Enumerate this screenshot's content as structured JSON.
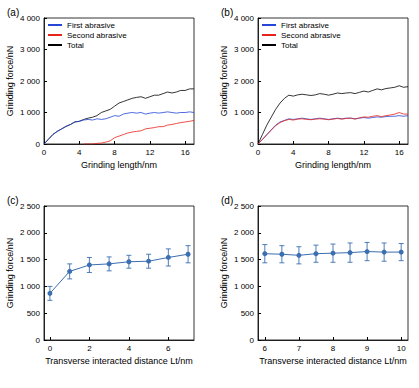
{
  "chart_data": [
    {
      "type": "line",
      "title": "(a)",
      "x_label": "Grinding length/nm",
      "y_label": "Grinding force/nN",
      "legend": "upper left",
      "xlim": [
        0,
        17
      ],
      "xticks": [
        0,
        4,
        8,
        12,
        16
      ],
      "ylim": [
        0,
        4000
      ],
      "yticks": [
        0,
        {
          "value": 1000,
          "label": "1 000"
        },
        {
          "value": 2000,
          "label": "2 000"
        },
        {
          "value": 3000,
          "label": "3 000"
        },
        {
          "value": 4000,
          "label": "4 000"
        }
      ],
      "x": [
        0,
        0.5,
        1,
        1.5,
        2,
        2.5,
        3,
        3.5,
        4,
        4.5,
        5,
        5.5,
        6,
        6.5,
        7,
        7.5,
        8,
        8.5,
        9,
        9.5,
        10,
        10.5,
        11,
        11.5,
        12,
        12.5,
        13,
        13.5,
        14,
        14.5,
        15,
        15.5,
        16,
        16.5,
        17
      ],
      "series": [
        {
          "name": "First abrasive",
          "color": "#2546d6",
          "values": [
            0,
            150,
            300,
            400,
            480,
            560,
            620,
            700,
            720,
            760,
            780,
            760,
            800,
            780,
            800,
            850,
            900,
            880,
            950,
            980,
            1000,
            980,
            1000,
            950,
            980,
            1000,
            980,
            1000,
            1020,
            1000,
            980,
            1000,
            1000,
            1020,
            1000
          ]
        },
        {
          "name": "Second abrasive",
          "color": "#e8231b",
          "values": [
            null,
            null,
            null,
            null,
            null,
            null,
            null,
            null,
            null,
            0,
            0,
            0,
            20,
            30,
            60,
            100,
            200,
            250,
            300,
            350,
            380,
            400,
            420,
            480,
            500,
            520,
            550,
            550,
            600,
            620,
            650,
            680,
            700,
            720,
            750
          ]
        },
        {
          "name": "Total",
          "color": "#000000",
          "values": [
            0,
            150,
            300,
            400,
            480,
            560,
            620,
            700,
            720,
            780,
            820,
            850,
            900,
            1000,
            1050,
            1100,
            1200,
            1300,
            1350,
            1400,
            1450,
            1480,
            1500,
            1450,
            1500,
            1550,
            1550,
            1600,
            1650,
            1620,
            1650,
            1700,
            1700,
            1750,
            1750
          ]
        }
      ]
    },
    {
      "type": "line",
      "title": "(b)",
      "x_label": "Grinding length/nm",
      "y_label": "Grinding force/nN",
      "legend": "upper left",
      "xlim": [
        0,
        17
      ],
      "xticks": [
        0,
        4,
        8,
        12,
        16
      ],
      "ylim": [
        0,
        4000
      ],
      "yticks": [
        0,
        {
          "value": 1000,
          "label": "1 000"
        },
        {
          "value": 2000,
          "label": "2 000"
        },
        {
          "value": 3000,
          "label": "3 000"
        },
        {
          "value": 4000,
          "label": "4 000"
        }
      ],
      "x": [
        0,
        0.5,
        1,
        1.5,
        2,
        2.5,
        3,
        3.5,
        4,
        4.5,
        5,
        5.5,
        6,
        6.5,
        7,
        7.5,
        8,
        8.5,
        9,
        9.5,
        10,
        10.5,
        11,
        11.5,
        12,
        12.5,
        13,
        13.5,
        14,
        14.5,
        15,
        15.5,
        16,
        16.5,
        17
      ],
      "series": [
        {
          "name": "First abrasive",
          "color": "#2546d6",
          "values": [
            0,
            150,
            300,
            450,
            600,
            700,
            750,
            800,
            780,
            800,
            820,
            800,
            780,
            800,
            820,
            800,
            780,
            800,
            820,
            800,
            820,
            820,
            800,
            820,
            840,
            820,
            840,
            860,
            850,
            870,
            880,
            880,
            900,
            880,
            900
          ]
        },
        {
          "name": "Second abrasive",
          "color": "#e8231b",
          "values": [
            0,
            140,
            290,
            440,
            580,
            680,
            740,
            780,
            760,
            790,
            800,
            780,
            770,
            790,
            800,
            790,
            770,
            790,
            810,
            790,
            810,
            820,
            790,
            830,
            860,
            850,
            880,
            900,
            870,
            900,
            920,
            950,
            1000,
            950,
            950
          ]
        },
        {
          "name": "Total",
          "color": "#000000",
          "values": [
            0,
            300,
            600,
            850,
            1100,
            1300,
            1450,
            1550,
            1520,
            1560,
            1580,
            1560,
            1540,
            1560,
            1600,
            1580,
            1550,
            1580,
            1620,
            1600,
            1620,
            1630,
            1600,
            1640,
            1680,
            1650,
            1700,
            1750,
            1720,
            1760,
            1780,
            1800,
            1850,
            1800,
            1820
          ]
        }
      ]
    },
    {
      "type": "line",
      "title": "(c)",
      "x_label": "Transverse interacted distance Lt/nm",
      "y_label": "Grinding force/nN",
      "xlim": [
        -0.3,
        7.3
      ],
      "xticks": [
        0,
        2,
        4,
        6
      ],
      "ylim": [
        0,
        2500
      ],
      "yticks": [
        0,
        500,
        {
          "value": 1000,
          "label": "1 000"
        },
        {
          "value": 1500,
          "label": "1 500"
        },
        {
          "value": 2000,
          "label": "2 000"
        },
        {
          "value": 2500,
          "label": "2 500"
        }
      ],
      "x": [
        0,
        1,
        2,
        3,
        4,
        5,
        6,
        7
      ],
      "series": [
        {
          "color": "#3b6fb0",
          "marker": "circle",
          "values": [
            870,
            1280,
            1400,
            1420,
            1460,
            1470,
            1540,
            1600
          ],
          "errors": [
            130,
            140,
            140,
            130,
            120,
            130,
            160,
            160
          ]
        }
      ]
    },
    {
      "type": "line",
      "title": "(d)",
      "x_label": "Transverse interacted distance Lt/nm",
      "y_label": "Grinding force/nN",
      "xlim": [
        5.8,
        10.2
      ],
      "xticks": [
        6,
        7,
        8,
        9,
        10
      ],
      "ylim": [
        0,
        2500
      ],
      "yticks": [
        0,
        500,
        {
          "value": 1000,
          "label": "1 000"
        },
        {
          "value": 1500,
          "label": "1 500"
        },
        {
          "value": 2000,
          "label": "2 000"
        },
        {
          "value": 2500,
          "label": "2 500"
        }
      ],
      "x": [
        6,
        6.5,
        7,
        7.5,
        8,
        8.5,
        9,
        9.5,
        10
      ],
      "series": [
        {
          "color": "#3b6fb0",
          "marker": "circle",
          "values": [
            1610,
            1600,
            1580,
            1610,
            1620,
            1630,
            1650,
            1640,
            1640
          ],
          "errors": [
            170,
            160,
            160,
            160,
            170,
            180,
            170,
            170,
            160
          ]
        }
      ]
    }
  ]
}
